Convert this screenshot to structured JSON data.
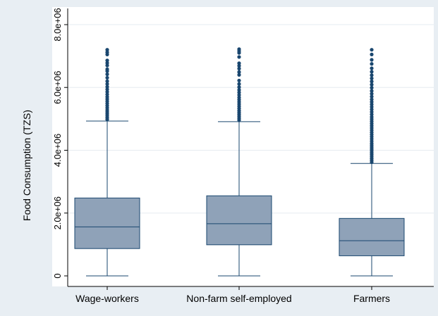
{
  "chart_data": {
    "type": "box",
    "title": "",
    "xlabel": "",
    "ylabel": "Food Consumption (TZS)",
    "ylim": [
      -400000,
      8400000
    ],
    "yticks": [
      {
        "value": 0,
        "label": "0"
      },
      {
        "value": 2000000,
        "label": "2.0e+06"
      },
      {
        "value": 4000000,
        "label": "4.0e+06"
      },
      {
        "value": 6000000,
        "label": "6.0e+06"
      },
      {
        "value": 8000000,
        "label": "8.0e+06"
      }
    ],
    "grid": true,
    "colors": {
      "box_fill": "#8fa2b8",
      "box_stroke": "#1a476f",
      "outlier": "#1a476f",
      "plot_bg": "#ffffff",
      "outer_bg": "#e8eef3",
      "grid": "#e6ebf0"
    },
    "categories": [
      "Wage-workers",
      "Non-farm self-employed",
      "Farmers"
    ],
    "boxes": [
      {
        "category": "Wage-workers",
        "min": 0,
        "q1": 870000,
        "median": 1560000,
        "q3": 2480000,
        "whisker_high": 4930000,
        "outliers": [
          4980000,
          5040000,
          5100000,
          5160000,
          5220000,
          5280000,
          5350000,
          5420000,
          5490000,
          5560000,
          5630000,
          5700000,
          5780000,
          5860000,
          5940000,
          6020000,
          6110000,
          6200000,
          6310000,
          6420000,
          6520000,
          6580000,
          6700000,
          6780000,
          6860000,
          7050000,
          7120000,
          7200000
        ]
      },
      {
        "category": "Non-farm self-employed",
        "min": 0,
        "q1": 990000,
        "median": 1660000,
        "q3": 2550000,
        "whisker_high": 4910000,
        "outliers": [
          4960000,
          5020000,
          5080000,
          5140000,
          5200000,
          5260000,
          5330000,
          5400000,
          5470000,
          5540000,
          5610000,
          5680000,
          5760000,
          5840000,
          5920000,
          6010000,
          6110000,
          6220000,
          6400000,
          6490000,
          6600000,
          6690000,
          6770000,
          6970000,
          7100000,
          7160000,
          7220000
        ]
      },
      {
        "category": "Farmers",
        "min": 0,
        "q1": 640000,
        "median": 1120000,
        "q3": 1830000,
        "whisker_high": 3580000,
        "outliers": [
          3620000,
          3680000,
          3740000,
          3800000,
          3860000,
          3920000,
          3980000,
          4040000,
          4100000,
          4160000,
          4220000,
          4290000,
          4360000,
          4430000,
          4500000,
          4570000,
          4640000,
          4710000,
          4780000,
          4850000,
          4920000,
          4990000,
          5060000,
          5140000,
          5220000,
          5300000,
          5380000,
          5460000,
          5540000,
          5620000,
          5710000,
          5800000,
          5890000,
          5990000,
          6090000,
          6190000,
          6290000,
          6390000,
          6500000,
          6610000,
          6750000,
          6880000,
          7050000,
          7200000
        ]
      }
    ]
  }
}
